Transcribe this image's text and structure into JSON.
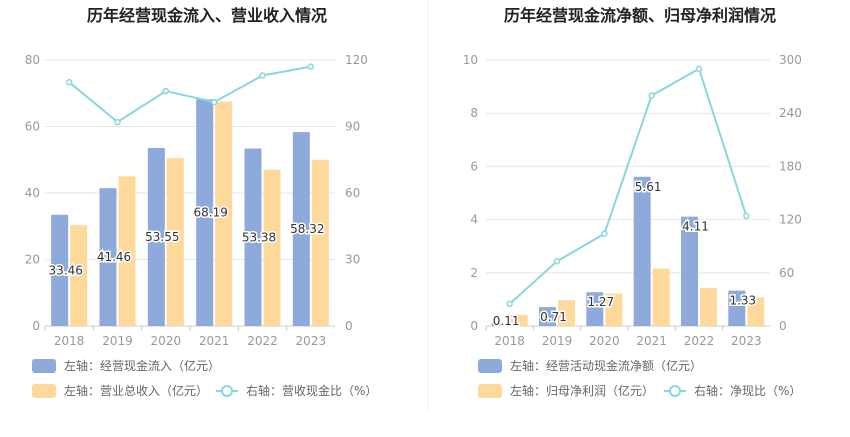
{
  "chart_data": [
    {
      "type": "bar",
      "title": "历年经营现金流入、营业收入情况",
      "categories": [
        "2018",
        "2019",
        "2020",
        "2021",
        "2022",
        "2023"
      ],
      "left_axis": {
        "ticks": [
          "0",
          "20",
          "40",
          "60",
          "80"
        ],
        "min": 0,
        "max": 80
      },
      "right_axis": {
        "ticks": [
          "0",
          "30",
          "60",
          "90",
          "120"
        ],
        "min": 0,
        "max": 120
      },
      "series": [
        {
          "name": "左轴：经营现金流入（亿元）",
          "kind": "bar",
          "axis": "left",
          "color": "#8eaadb",
          "values": [
            33.46,
            41.46,
            53.55,
            68.19,
            53.38,
            58.32
          ],
          "labels": [
            "33.46",
            "41.46",
            "53.55",
            "68.19",
            "53.38",
            "58.32"
          ]
        },
        {
          "name": "左轴：营业总收入（亿元）",
          "kind": "bar",
          "axis": "left",
          "color": "#ffd99b",
          "values": [
            30.3,
            45.0,
            50.5,
            67.5,
            47.0,
            50.0
          ]
        },
        {
          "name": "右轴：营收现金比（%）",
          "kind": "line",
          "axis": "right",
          "color": "#88d7de",
          "values": [
            110,
            92,
            106,
            101,
            113,
            117
          ]
        }
      ],
      "grid": true
    },
    {
      "type": "bar",
      "title": "历年经营现金流净额、归母净利润情况",
      "categories": [
        "2018",
        "2019",
        "2020",
        "2021",
        "2022",
        "2023"
      ],
      "left_axis": {
        "ticks": [
          "0",
          "2",
          "4",
          "6",
          "8",
          "10"
        ],
        "min": 0,
        "max": 10
      },
      "right_axis": {
        "ticks": [
          "0",
          "60",
          "120",
          "180",
          "240",
          "300"
        ],
        "min": 0,
        "max": 300
      },
      "series": [
        {
          "name": "左轴：经营活动现金流净额（亿元）",
          "kind": "bar",
          "axis": "left",
          "color": "#8eaadb",
          "values": [
            0.11,
            0.71,
            1.27,
            5.61,
            4.11,
            1.33
          ],
          "labels": [
            "0.11",
            "0.71",
            "1.27",
            "5.61",
            "4.11",
            "1.33"
          ]
        },
        {
          "name": "左轴：归母净利润（亿元）",
          "kind": "bar",
          "axis": "left",
          "color": "#ffd99b",
          "values": [
            0.42,
            0.97,
            1.22,
            2.16,
            1.43,
            1.08
          ]
        },
        {
          "name": "右轴：净现比（%）",
          "kind": "line",
          "axis": "right",
          "color": "#88d7de",
          "values": [
            25,
            73,
            104,
            260,
            290,
            124
          ]
        }
      ],
      "grid": true
    }
  ]
}
